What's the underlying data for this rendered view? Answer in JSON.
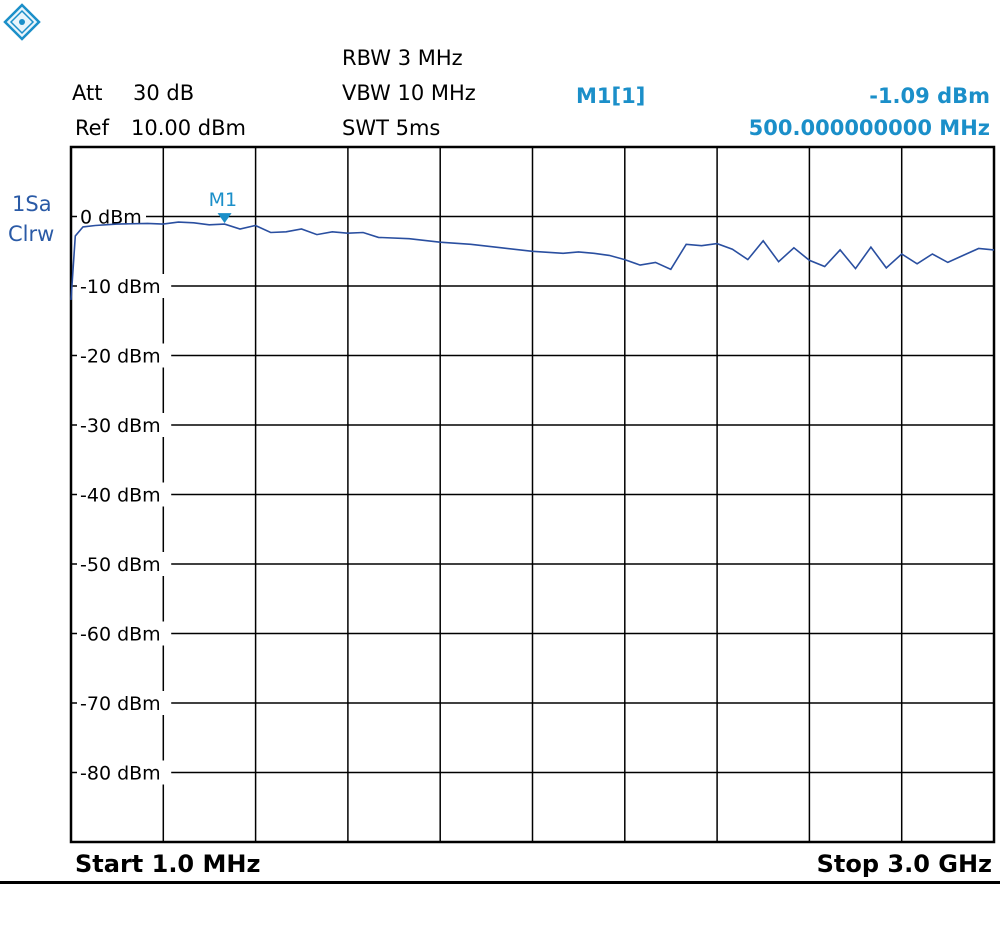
{
  "header": {
    "att_label": "Att",
    "att_value": "30 dB",
    "ref_label": "Ref",
    "ref_value": "10.00 dBm",
    "rbw": "RBW 3 MHz",
    "vbw": "VBW 10 MHz",
    "swt": "SWT 5ms",
    "marker_id": "M1[1]",
    "marker_level": "-1.09 dBm",
    "marker_freq": "500.000000000 MHz"
  },
  "trace_label": {
    "line1": "1Sa",
    "line2": "Clrw"
  },
  "footer": {
    "start": "Start 1.0 MHz",
    "stop": "Stop 3.0 GHz"
  },
  "colors": {
    "trace": "#2a4fa0",
    "marker": "#1b8fc9",
    "grid": "#000000"
  },
  "icons": {
    "logo": "rohde-schwarz-logo"
  },
  "chart_data": {
    "type": "line",
    "title": "",
    "xlabel": "",
    "ylabel": "",
    "xlim": [
      1.0,
      3000.0
    ],
    "ylim": [
      -90,
      10
    ],
    "x_unit": "MHz",
    "y_unit": "dBm",
    "y_ticks": [
      {
        "value": 0,
        "label": "0 dBm"
      },
      {
        "value": -10,
        "label": "-10 dBm"
      },
      {
        "value": -20,
        "label": "-20 dBm"
      },
      {
        "value": -30,
        "label": "-30 dBm"
      },
      {
        "value": -40,
        "label": "-40 dBm"
      },
      {
        "value": -50,
        "label": "-50 dBm"
      },
      {
        "value": -60,
        "label": "-60 dBm"
      },
      {
        "value": -70,
        "label": "-70 dBm"
      },
      {
        "value": -80,
        "label": "-80 dBm"
      }
    ],
    "x_divisions": 10,
    "y_divisions": 10,
    "grid": true,
    "series": [
      {
        "x": [
          1,
          15,
          40,
          80,
          150,
          250,
          300,
          350,
          400,
          450,
          500,
          550,
          600,
          650,
          700,
          750,
          800,
          850,
          900,
          950,
          1000,
          1100,
          1200,
          1300,
          1400,
          1500,
          1600,
          1650,
          1700,
          1750,
          1800,
          1850,
          1900,
          1950,
          2000,
          2050,
          2100,
          2150,
          2200,
          2250,
          2300,
          2350,
          2400,
          2450,
          2500,
          2550,
          2600,
          2650,
          2700,
          2750,
          2800,
          2850,
          2900,
          2950,
          3000
        ],
        "y": [
          -12,
          -2.8,
          -1.5,
          -1.3,
          -1.1,
          -1.0,
          -1.1,
          -0.8,
          -0.9,
          -1.2,
          -1.09,
          -1.8,
          -1.3,
          -2.3,
          -2.2,
          -1.8,
          -2.6,
          -2.2,
          -2.4,
          -2.3,
          -3.0,
          -3.2,
          -3.7,
          -4.0,
          -4.5,
          -5.0,
          -5.3,
          -5.1,
          -5.3,
          -5.6,
          -6.2,
          -7.0,
          -6.6,
          -7.6,
          -4.0,
          -4.2,
          -3.9,
          -4.7,
          -6.2,
          -3.5,
          -6.5,
          -4.5,
          -6.3,
          -7.2,
          -4.8,
          -7.5,
          -4.4,
          -7.4,
          -5.4,
          -6.8,
          -5.4,
          -6.6,
          -5.6,
          -4.6,
          -4.8
        ]
      }
    ],
    "markers": [
      {
        "name": "M1",
        "x": 500.0,
        "y": -1.09
      }
    ]
  }
}
